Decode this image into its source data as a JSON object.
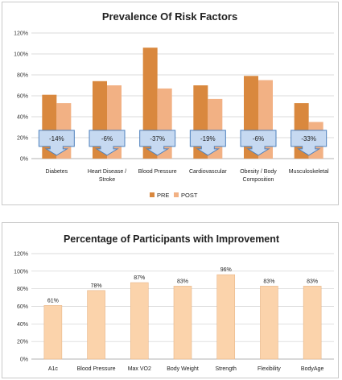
{
  "chart_data": [
    {
      "type": "bar",
      "title": "Prevalence Of Risk Factors",
      "categories": [
        [
          "Diabetes"
        ],
        [
          "Heart Disease /",
          "Stroke"
        ],
        [
          "Blood Pressure"
        ],
        [
          "Cardiovascular"
        ],
        [
          "Obesity / Body",
          "Composition"
        ],
        [
          "Musculoskeletal"
        ]
      ],
      "series": [
        {
          "name": "PRE",
          "color": "#d9883e",
          "values": [
            61,
            74,
            106,
            70,
            79,
            53
          ]
        },
        {
          "name": "POST",
          "color": "#f2b184",
          "values": [
            53,
            70,
            67,
            57,
            75,
            35
          ]
        }
      ],
      "changes": [
        "-14%",
        "-6%",
        "-37%",
        "-19%",
        "-6%",
        "-33%"
      ],
      "callout_fill": "#c6d9f1",
      "callout_stroke": "#4f81bd",
      "ylim": [
        0,
        120
      ],
      "yticks": [
        "0%",
        "20%",
        "40%",
        "60%",
        "80%",
        "100%",
        "120%"
      ],
      "legend_position": "bottom",
      "grid": true
    },
    {
      "type": "bar",
      "title": "Percentage of Participants with Improvement",
      "categories": [
        "A1c",
        "Blood Pressure",
        "Max VO2",
        "Body Weight",
        "Strength",
        "Flexibility",
        "BodyAge"
      ],
      "values": [
        61,
        78,
        87,
        83,
        96,
        83,
        83
      ],
      "value_labels": [
        "61%",
        "78%",
        "87%",
        "83%",
        "96%",
        "83%",
        "83%"
      ],
      "color": "#fbd3ab",
      "ylim": [
        0,
        120
      ],
      "yticks": [
        "0%",
        "20%",
        "40%",
        "60%",
        "80%",
        "100%",
        "120%"
      ],
      "grid": true
    }
  ]
}
